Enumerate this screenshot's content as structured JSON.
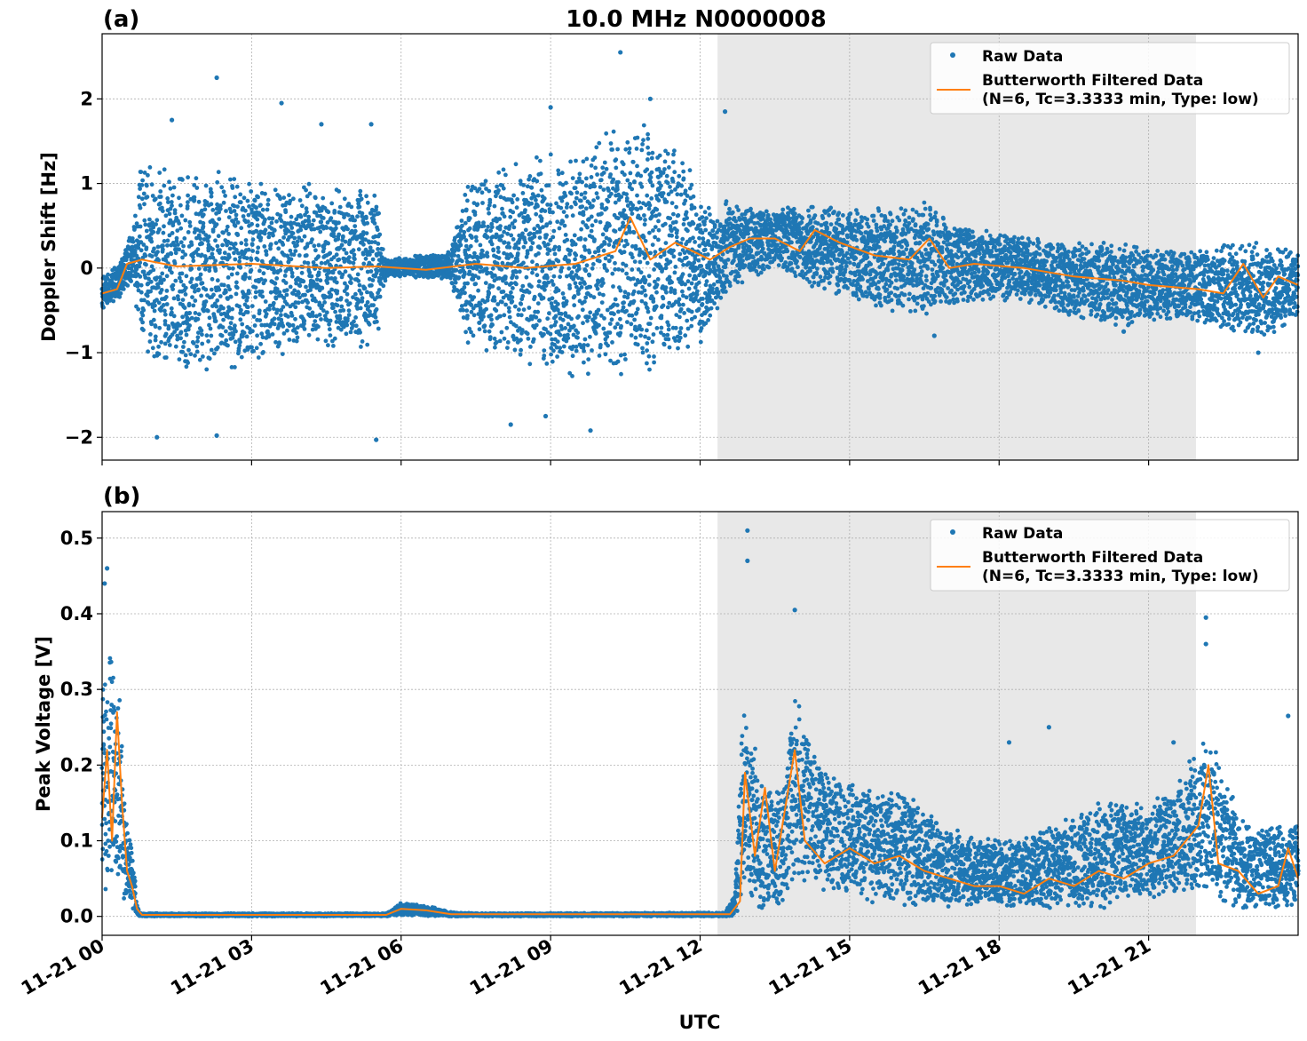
{
  "figure": {
    "title": "10.0 MHz N0000008",
    "xlabel": "UTC",
    "colors": {
      "raw": "#1f77b4",
      "filtered": "#ff7f0e",
      "shade": "#e8e8e8",
      "grid": "#b0b0b0"
    }
  },
  "chart_data": [
    {
      "panel_label": "(a)",
      "type": "scatter",
      "ylabel": "Doppler Shift [Hz]",
      "xlim": [
        "11-21 00:00",
        "11-22 00:00"
      ],
      "ylim": [
        -2.27,
        2.77
      ],
      "yticks": [
        -2,
        -1,
        0,
        1,
        2
      ],
      "ytick_labels": [
        "−2",
        "−1",
        "0",
        "1",
        "2"
      ],
      "xticks_hours": [
        0,
        3,
        6,
        9,
        12,
        15,
        18,
        21
      ],
      "xtick_labels": [
        "11-21 00",
        "11-21 03",
        "11-21 06",
        "11-21 09",
        "11-21 12",
        "11-21 15",
        "11-21 18",
        "11-21 21"
      ],
      "shaded_region_hours": [
        12.35,
        21.95
      ],
      "grid": true,
      "legend_position": "top-right",
      "legend": [
        "Raw Data",
        "Butterworth Filtered Data",
        "(N=6, Tc=3.3333 min, Type: low)"
      ],
      "series": [
        {
          "name": "Raw Data",
          "kind": "scatter-envelope",
          "points_hour_lower_upper": [
            [
              0.0,
              -0.5,
              -0.1
            ],
            [
              0.3,
              -0.4,
              0.05
            ],
            [
              0.6,
              -0.2,
              0.45
            ],
            [
              0.8,
              -1.0,
              1.3
            ],
            [
              1.5,
              -1.3,
              1.2
            ],
            [
              2.5,
              -1.2,
              1.2
            ],
            [
              3.5,
              -1.1,
              1.1
            ],
            [
              4.5,
              -1.0,
              1.0
            ],
            [
              5.5,
              -0.9,
              0.9
            ],
            [
              5.7,
              -0.1,
              0.1
            ],
            [
              7.0,
              -0.15,
              0.2
            ],
            [
              7.3,
              -0.9,
              1.0
            ],
            [
              8.5,
              -1.2,
              1.3
            ],
            [
              9.5,
              -1.3,
              1.4
            ],
            [
              10.5,
              -1.3,
              1.8
            ],
            [
              11.5,
              -1.1,
              1.5
            ],
            [
              12.2,
              -0.8,
              0.7
            ],
            [
              12.5,
              -0.3,
              0.8
            ],
            [
              13.5,
              0.0,
              0.7
            ],
            [
              14.5,
              -0.3,
              0.8
            ],
            [
              15.5,
              -0.5,
              0.7
            ],
            [
              16.5,
              -0.6,
              0.8
            ],
            [
              17.5,
              -0.4,
              0.5
            ],
            [
              18.5,
              -0.4,
              0.4
            ],
            [
              19.5,
              -0.6,
              0.3
            ],
            [
              20.5,
              -0.7,
              0.3
            ],
            [
              21.5,
              -0.6,
              0.2
            ],
            [
              22.5,
              -0.7,
              0.3
            ],
            [
              23.2,
              -0.9,
              0.3
            ],
            [
              24.0,
              -0.6,
              0.2
            ]
          ],
          "outliers_hour_value": [
            [
              2.3,
              2.25
            ],
            [
              10.4,
              2.55
            ],
            [
              1.4,
              1.75
            ],
            [
              3.6,
              1.95
            ],
            [
              4.4,
              1.7
            ],
            [
              5.4,
              1.7
            ],
            [
              9.0,
              1.9
            ],
            [
              11.0,
              2.0
            ],
            [
              12.5,
              1.85
            ],
            [
              1.1,
              -2.0
            ],
            [
              2.3,
              -1.98
            ],
            [
              5.5,
              -2.03
            ],
            [
              8.2,
              -1.85
            ],
            [
              9.8,
              -1.92
            ],
            [
              8.9,
              -1.75
            ],
            [
              16.7,
              -0.8
            ],
            [
              23.2,
              -1.0
            ],
            [
              20.5,
              -0.75
            ]
          ]
        },
        {
          "name": "Butterworth Filtered Data",
          "kind": "line",
          "points_hour_value": [
            [
              0.0,
              -0.3
            ],
            [
              0.3,
              -0.25
            ],
            [
              0.5,
              0.05
            ],
            [
              0.8,
              0.1
            ],
            [
              1.5,
              0.02
            ],
            [
              3.0,
              0.05
            ],
            [
              4.5,
              0.0
            ],
            [
              5.5,
              0.02
            ],
            [
              6.5,
              -0.02
            ],
            [
              7.5,
              0.05
            ],
            [
              8.5,
              0.0
            ],
            [
              9.5,
              0.05
            ],
            [
              10.3,
              0.2
            ],
            [
              10.6,
              0.6
            ],
            [
              11.0,
              0.1
            ],
            [
              11.5,
              0.3
            ],
            [
              12.2,
              0.1
            ],
            [
              12.6,
              0.25
            ],
            [
              13.0,
              0.35
            ],
            [
              13.5,
              0.35
            ],
            [
              14.0,
              0.2
            ],
            [
              14.3,
              0.45
            ],
            [
              14.8,
              0.3
            ],
            [
              15.5,
              0.15
            ],
            [
              16.2,
              0.1
            ],
            [
              16.6,
              0.35
            ],
            [
              17.0,
              0.0
            ],
            [
              17.5,
              0.05
            ],
            [
              18.5,
              0.0
            ],
            [
              19.5,
              -0.1
            ],
            [
              20.5,
              -0.15
            ],
            [
              21.0,
              -0.2
            ],
            [
              22.0,
              -0.25
            ],
            [
              22.5,
              -0.3
            ],
            [
              22.9,
              0.05
            ],
            [
              23.3,
              -0.35
            ],
            [
              23.6,
              -0.1
            ],
            [
              24.0,
              -0.2
            ]
          ]
        }
      ]
    },
    {
      "panel_label": "(b)",
      "type": "scatter",
      "ylabel": "Peak Voltage [V]",
      "xlim": [
        "11-21 00:00",
        "11-22 00:00"
      ],
      "ylim": [
        -0.025,
        0.535
      ],
      "yticks": [
        0.0,
        0.1,
        0.2,
        0.3,
        0.4,
        0.5
      ],
      "ytick_labels": [
        "0.0",
        "0.1",
        "0.2",
        "0.3",
        "0.4",
        "0.5"
      ],
      "xticks_hours": [
        0,
        3,
        6,
        9,
        12,
        15,
        18,
        21
      ],
      "xtick_labels": [
        "11-21 00",
        "11-21 03",
        "11-21 06",
        "11-21 09",
        "11-21 12",
        "11-21 15",
        "11-21 18",
        "11-21 21"
      ],
      "shaded_region_hours": [
        12.35,
        21.95
      ],
      "grid": true,
      "legend_position": "top-right",
      "legend": [
        "Raw Data",
        "Butterworth Filtered Data",
        "(N=6, Tc=3.3333 min, Type: low)"
      ],
      "series": [
        {
          "name": "Raw Data",
          "kind": "scatter-envelope",
          "points_hour_lower_upper": [
            [
              0.0,
              0.04,
              0.3
            ],
            [
              0.15,
              0.03,
              0.35
            ],
            [
              0.35,
              0.02,
              0.3
            ],
            [
              0.5,
              0.02,
              0.12
            ],
            [
              0.6,
              0.01,
              0.1
            ],
            [
              0.7,
              0.002,
              0.02
            ],
            [
              0.75,
              0.0,
              0.004
            ],
            [
              5.7,
              0.0,
              0.004
            ],
            [
              6.0,
              0.0,
              0.018
            ],
            [
              6.5,
              0.0,
              0.015
            ],
            [
              7.0,
              0.0,
              0.006
            ],
            [
              7.5,
              0.0,
              0.004
            ],
            [
              12.5,
              0.0,
              0.005
            ],
            [
              12.7,
              0.0,
              0.03
            ],
            [
              12.85,
              0.02,
              0.28
            ],
            [
              13.2,
              0.01,
              0.2
            ],
            [
              13.6,
              0.01,
              0.16
            ],
            [
              13.9,
              0.04,
              0.3
            ],
            [
              14.4,
              0.03,
              0.2
            ],
            [
              15.0,
              0.02,
              0.18
            ],
            [
              16.0,
              0.01,
              0.17
            ],
            [
              17.0,
              0.01,
              0.12
            ],
            [
              18.0,
              0.01,
              0.1
            ],
            [
              19.0,
              0.01,
              0.12
            ],
            [
              20.0,
              0.01,
              0.15
            ],
            [
              21.0,
              0.02,
              0.15
            ],
            [
              21.5,
              0.03,
              0.17
            ],
            [
              22.2,
              0.03,
              0.25
            ],
            [
              22.6,
              0.01,
              0.17
            ],
            [
              23.0,
              0.01,
              0.12
            ],
            [
              23.5,
              0.01,
              0.12
            ],
            [
              24.0,
              0.01,
              0.12
            ]
          ],
          "outliers_hour_value": [
            [
              12.95,
              0.51
            ],
            [
              12.95,
              0.47
            ],
            [
              13.9,
              0.405
            ],
            [
              0.1,
              0.46
            ],
            [
              0.05,
              0.44
            ],
            [
              22.15,
              0.395
            ],
            [
              22.15,
              0.36
            ],
            [
              23.8,
              0.265
            ],
            [
              21.5,
              0.23
            ],
            [
              19.0,
              0.25
            ],
            [
              18.2,
              0.23
            ]
          ]
        },
        {
          "name": "Butterworth Filtered Data",
          "kind": "line",
          "points_hour_value": [
            [
              0.0,
              0.13
            ],
            [
              0.1,
              0.22
            ],
            [
              0.2,
              0.1
            ],
            [
              0.3,
              0.27
            ],
            [
              0.4,
              0.15
            ],
            [
              0.5,
              0.06
            ],
            [
              0.6,
              0.04
            ],
            [
              0.7,
              0.01
            ],
            [
              0.8,
              0.002
            ],
            [
              5.7,
              0.002
            ],
            [
              6.0,
              0.01
            ],
            [
              6.5,
              0.008
            ],
            [
              7.0,
              0.003
            ],
            [
              12.6,
              0.003
            ],
            [
              12.8,
              0.02
            ],
            [
              12.9,
              0.19
            ],
            [
              13.1,
              0.08
            ],
            [
              13.3,
              0.17
            ],
            [
              13.5,
              0.06
            ],
            [
              13.9,
              0.22
            ],
            [
              14.1,
              0.1
            ],
            [
              14.5,
              0.07
            ],
            [
              15.0,
              0.09
            ],
            [
              15.5,
              0.07
            ],
            [
              16.0,
              0.08
            ],
            [
              16.5,
              0.06
            ],
            [
              17.0,
              0.05
            ],
            [
              17.5,
              0.04
            ],
            [
              18.0,
              0.04
            ],
            [
              18.5,
              0.03
            ],
            [
              19.0,
              0.05
            ],
            [
              19.5,
              0.04
            ],
            [
              20.0,
              0.06
            ],
            [
              20.5,
              0.05
            ],
            [
              21.0,
              0.07
            ],
            [
              21.5,
              0.08
            ],
            [
              22.0,
              0.12
            ],
            [
              22.2,
              0.2
            ],
            [
              22.4,
              0.07
            ],
            [
              22.8,
              0.06
            ],
            [
              23.2,
              0.03
            ],
            [
              23.6,
              0.04
            ],
            [
              23.8,
              0.09
            ],
            [
              24.0,
              0.05
            ]
          ]
        }
      ]
    }
  ]
}
